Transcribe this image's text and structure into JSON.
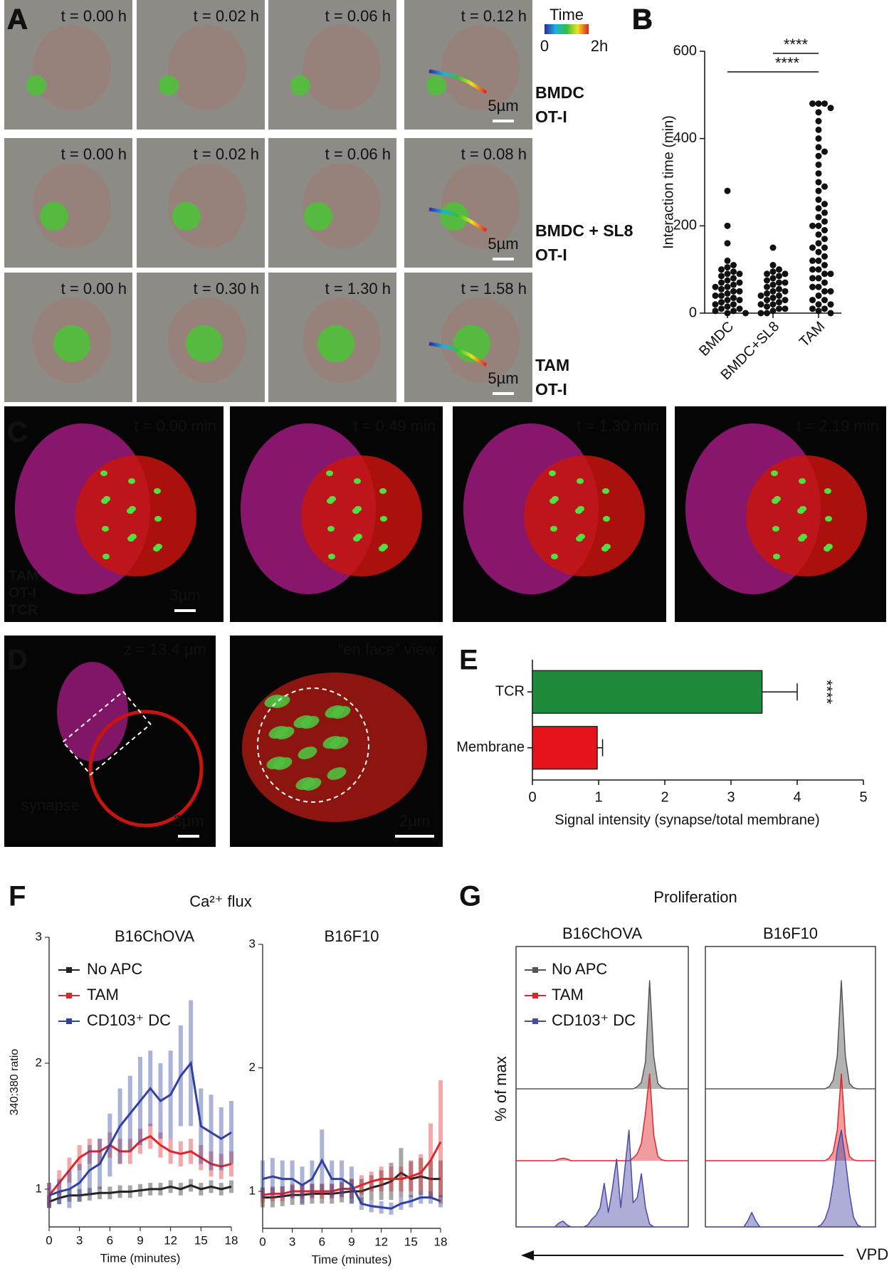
{
  "panels": {
    "letters": [
      "A",
      "B",
      "C",
      "D",
      "E",
      "F",
      "G"
    ],
    "A": {
      "times": [
        [
          "t = 0.00 h",
          "t = 0.02 h",
          "t = 0.06 h",
          "t = 0.12 h"
        ],
        [
          "t = 0.00 h",
          "t = 0.02 h",
          "t = 0.06 h",
          "t = 0.08 h"
        ],
        [
          "t = 0.00 h",
          "t = 0.30 h",
          "t = 1.30 h",
          "t = 1.58 h"
        ]
      ],
      "scale": "5µm",
      "rows": [
        [
          "BMDC",
          "OT-I"
        ],
        [
          "BMDC + SL8",
          "OT-I"
        ],
        [
          "TAM",
          "OT-I"
        ]
      ],
      "colorbar": {
        "title": "Time",
        "min": "0",
        "max": "2h"
      }
    },
    "C": {
      "times": [
        "t = 0.00 min",
        "t = 0.49 min",
        "t = 1.30 min",
        "t = 2.19 min"
      ],
      "legend": [
        "TAM",
        "OT-I",
        "TCR"
      ],
      "scale": "3µm"
    },
    "D": {
      "labels": [
        "z = 13.4 µm",
        "“en face” view"
      ],
      "synapse": "synapse",
      "scales": [
        "3µm",
        "2µm"
      ]
    },
    "F": {
      "title": "Ca²⁺ flux"
    },
    "G": {
      "title": "Proliferation",
      "xlabel": "VPD"
    }
  },
  "chart_data": [
    {
      "type": "dotplot",
      "ylabel": "Interaction time (min)",
      "categories": [
        "BMDC",
        "BMDC+SL8",
        "TAM"
      ],
      "color": "#111111",
      "values": [
        [
          280,
          200,
          160,
          120,
          110,
          105,
          100,
          95,
          90,
          90,
          85,
          80,
          75,
          70,
          70,
          65,
          60,
          60,
          55,
          50,
          50,
          45,
          40,
          40,
          35,
          30,
          30,
          25,
          20,
          20,
          15,
          10,
          10,
          5,
          5,
          0,
          0
        ],
        [
          150,
          110,
          100,
          95,
          90,
          90,
          85,
          80,
          75,
          70,
          70,
          65,
          60,
          55,
          50,
          50,
          45,
          40,
          40,
          35,
          30,
          30,
          25,
          20,
          20,
          15,
          10,
          10,
          5,
          0,
          0
        ],
        [
          480,
          480,
          480,
          470,
          460,
          440,
          420,
          400,
          380,
          370,
          360,
          340,
          320,
          300,
          290,
          280,
          260,
          250,
          240,
          230,
          220,
          210,
          200,
          200,
          190,
          180,
          170,
          160,
          150,
          150,
          140,
          130,
          120,
          120,
          110,
          100,
          100,
          90,
          90,
          80,
          80,
          70,
          60,
          60,
          50,
          50,
          40,
          30,
          30,
          20,
          20,
          10,
          10,
          5,
          0
        ]
      ],
      "ylim": [
        0,
        600
      ],
      "yticks": [
        0,
        200,
        400,
        600
      ],
      "annotations": [
        "****",
        "****"
      ]
    },
    {
      "type": "hbar",
      "xlabel": "Signal intensity (synapse/total membrane)",
      "categories": [
        "TCR",
        "Membrane"
      ],
      "values": [
        3.47,
        0.98
      ],
      "errors": [
        0.53,
        0.08
      ],
      "colors": [
        "#1e8a3a",
        "#e3141c"
      ],
      "xlim": [
        0,
        5
      ],
      "xticks": [
        0,
        1,
        2,
        3,
        4,
        5
      ],
      "annotations": [
        "****"
      ]
    },
    {
      "type": "line",
      "title": "B16ChOVA",
      "ylabel": "340:380 ratio",
      "xlabel": "Time (minutes)",
      "legend": "upper left",
      "x": [
        0,
        1,
        2,
        3,
        4,
        5,
        6,
        7,
        8,
        9,
        10,
        11,
        12,
        13,
        14,
        15,
        16,
        17,
        18
      ],
      "xlim": [
        0,
        18
      ],
      "xticks": [
        0,
        3,
        6,
        9,
        12,
        15,
        18
      ],
      "ylim": [
        0.7,
        3
      ],
      "yticks": [
        1,
        2,
        3
      ],
      "series": [
        {
          "name": "No APC",
          "color": "#222222",
          "values": [
            0.9,
            0.93,
            0.95,
            0.95,
            0.96,
            0.97,
            0.97,
            0.98,
            0.98,
            0.99,
            1.0,
            1.0,
            1.02,
            1.0,
            1.03,
            1.0,
            1.02,
            1.0,
            1.02
          ],
          "errors": [
            0.05,
            0.05,
            0.05,
            0.05,
            0.05,
            0.05,
            0.05,
            0.05,
            0.05,
            0.05,
            0.05,
            0.05,
            0.05,
            0.05,
            0.05,
            0.05,
            0.05,
            0.05,
            0.05
          ]
        },
        {
          "name": "TAM",
          "color": "#e0252a",
          "values": [
            0.95,
            1.05,
            1.15,
            1.25,
            1.3,
            1.3,
            1.35,
            1.3,
            1.3,
            1.38,
            1.42,
            1.35,
            1.3,
            1.28,
            1.3,
            1.25,
            1.2,
            1.18,
            1.2
          ],
          "errors": [
            0.1,
            0.1,
            0.1,
            0.1,
            0.1,
            0.1,
            0.1,
            0.1,
            0.1,
            0.1,
            0.1,
            0.1,
            0.1,
            0.1,
            0.1,
            0.1,
            0.1,
            0.1,
            0.1
          ]
        },
        {
          "name": "CD103⁺ DC",
          "color": "#3040a0",
          "values": [
            0.95,
            0.98,
            1.0,
            1.05,
            1.15,
            1.2,
            1.35,
            1.5,
            1.6,
            1.7,
            1.8,
            1.7,
            1.75,
            1.9,
            2.0,
            1.5,
            1.45,
            1.4,
            1.45
          ],
          "errors": [
            0.1,
            0.1,
            0.15,
            0.15,
            0.2,
            0.2,
            0.25,
            0.3,
            0.3,
            0.35,
            0.3,
            0.3,
            0.35,
            0.4,
            0.5,
            0.3,
            0.3,
            0.25,
            0.25
          ]
        }
      ]
    },
    {
      "type": "line",
      "title": "B16F10",
      "xlabel": "Time (minutes)",
      "x": [
        0,
        1,
        2,
        3,
        4,
        5,
        6,
        7,
        8,
        9,
        10,
        11,
        12,
        13,
        14,
        15,
        16,
        17,
        18
      ],
      "xlim": [
        0,
        18
      ],
      "xticks": [
        0,
        3,
        6,
        9,
        12,
        15,
        18
      ],
      "ylim": [
        0.7,
        3
      ],
      "yticks": [
        1,
        2,
        3
      ],
      "series": [
        {
          "color": "#222222",
          "values": [
            0.95,
            0.95,
            0.96,
            0.97,
            0.97,
            0.98,
            0.98,
            0.98,
            0.99,
            1.0,
            1.0,
            1.03,
            1.05,
            1.08,
            1.15,
            1.1,
            1.12,
            1.1,
            1.1
          ],
          "errors": [
            0.08,
            0.08,
            0.08,
            0.08,
            0.08,
            0.08,
            0.08,
            0.08,
            0.08,
            0.1,
            0.1,
            0.1,
            0.12,
            0.15,
            0.2,
            0.15,
            0.15,
            0.15,
            0.15
          ]
        },
        {
          "color": "#e0252a",
          "values": [
            0.97,
            0.98,
            0.98,
            1.0,
            1.0,
            1.0,
            1.0,
            1.0,
            1.02,
            1.02,
            1.05,
            1.08,
            1.1,
            1.1,
            1.1,
            1.12,
            1.15,
            1.25,
            1.4
          ],
          "errors": [
            0.06,
            0.06,
            0.06,
            0.06,
            0.06,
            0.06,
            0.06,
            0.06,
            0.06,
            0.08,
            0.08,
            0.08,
            0.1,
            0.1,
            0.1,
            0.12,
            0.15,
            0.3,
            0.5
          ]
        },
        {
          "color": "#3040a0",
          "values": [
            1.1,
            1.12,
            1.1,
            1.1,
            1.05,
            1.1,
            1.25,
            1.1,
            1.1,
            1.05,
            0.9,
            0.88,
            0.87,
            0.86,
            0.9,
            0.92,
            0.95,
            0.95,
            0.92
          ],
          "errors": [
            0.15,
            0.15,
            0.15,
            0.15,
            0.15,
            0.15,
            0.25,
            0.15,
            0.15,
            0.15,
            0.05,
            0.05,
            0.05,
            0.05,
            0.05,
            0.05,
            0.05,
            0.05,
            0.05
          ]
        }
      ]
    },
    {
      "type": "density",
      "title": "B16ChOVA",
      "ylabel": "% of max",
      "legend": "upper left",
      "series": [
        {
          "name": "No APC",
          "color": "#555555",
          "values": [
            0,
            0,
            0,
            0,
            0,
            0,
            0,
            0,
            0,
            0,
            0,
            0,
            0,
            0,
            0,
            0,
            0,
            0,
            0,
            0,
            0,
            0,
            0,
            0,
            0,
            0,
            0,
            0,
            2,
            6,
            25,
            100,
            30,
            5,
            1,
            0,
            0,
            0,
            0,
            0
          ]
        },
        {
          "name": "TAM",
          "color": "#e0252a",
          "values": [
            0,
            0,
            0,
            0,
            0,
            0,
            0,
            0,
            0,
            2,
            3,
            2,
            0,
            0,
            0,
            0,
            0,
            0,
            0,
            0,
            0,
            0,
            0,
            0,
            0,
            0,
            0,
            3,
            8,
            20,
            55,
            100,
            30,
            5,
            1,
            0,
            0,
            0,
            0,
            0
          ]
        },
        {
          "name": "CD103⁺ DC",
          "color": "#4a4aa8",
          "values": [
            0,
            0,
            0,
            0,
            0,
            0,
            0,
            0,
            0,
            4,
            6,
            2,
            0,
            0,
            0,
            0,
            2,
            8,
            12,
            20,
            45,
            15,
            40,
            70,
            20,
            60,
            100,
            25,
            30,
            55,
            20,
            3,
            0,
            0,
            0,
            0,
            0,
            0,
            0,
            0
          ]
        }
      ]
    },
    {
      "type": "density",
      "title": "B16F10",
      "series": [
        {
          "color": "#555555",
          "values": [
            0,
            0,
            0,
            0,
            0,
            0,
            0,
            0,
            0,
            0,
            0,
            0,
            0,
            0,
            0,
            0,
            0,
            0,
            0,
            0,
            0,
            0,
            0,
            0,
            0,
            0,
            0,
            0,
            0,
            2,
            8,
            30,
            100,
            30,
            5,
            1,
            0,
            0,
            0,
            0
          ]
        },
        {
          "color": "#e0252a",
          "values": [
            0,
            0,
            0,
            0,
            0,
            0,
            0,
            0,
            0,
            0,
            0,
            0,
            0,
            0,
            0,
            0,
            0,
            0,
            0,
            0,
            0,
            0,
            0,
            0,
            0,
            0,
            0,
            0,
            0,
            3,
            10,
            35,
            100,
            30,
            5,
            1,
            0,
            0,
            0,
            0
          ]
        },
        {
          "color": "#4a4aa8",
          "values": [
            0,
            0,
            0,
            0,
            0,
            0,
            0,
            0,
            0,
            6,
            15,
            6,
            0,
            0,
            0,
            0,
            0,
            0,
            0,
            0,
            0,
            0,
            0,
            0,
            0,
            0,
            0,
            2,
            8,
            20,
            45,
            80,
            100,
            70,
            35,
            10,
            2,
            0,
            0,
            0
          ]
        }
      ]
    }
  ]
}
